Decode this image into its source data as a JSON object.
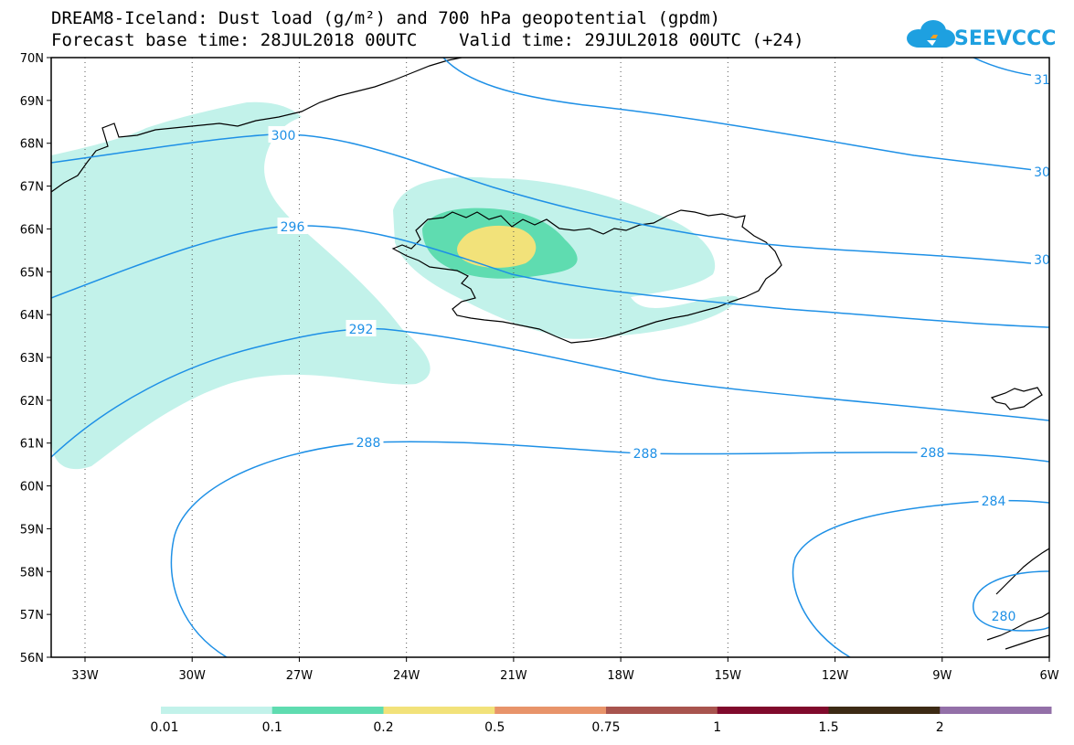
{
  "title_line1": "DREAM8-Iceland: Dust load (g/m²) and 700 hPa geopotential (gpdm)",
  "title_line2": "Forecast base time: 28JUL2018 00UTC    Valid time: 29JUL2018 00UTC (+24)",
  "logo_text": "SEEVCCC",
  "colors": {
    "contour": "#1e90e6",
    "coast": "#000000",
    "grid": "#555555"
  },
  "lat_labels": [
    "70N",
    "69N",
    "68N",
    "67N",
    "66N",
    "65N",
    "64N",
    "63N",
    "62N",
    "61N",
    "60N",
    "59N",
    "58N",
    "57N",
    "56N"
  ],
  "lon_labels": [
    "33W",
    "30W",
    "27W",
    "24W",
    "21W",
    "18W",
    "15W",
    "12W",
    "9W",
    "6W"
  ],
  "contour_labels": [
    {
      "id": "c300",
      "text": "300"
    },
    {
      "id": "c296",
      "text": "296"
    },
    {
      "id": "c292",
      "text": "292"
    },
    {
      "id": "c288a",
      "text": "288"
    },
    {
      "id": "c288b",
      "text": "288"
    },
    {
      "id": "c288c",
      "text": "288"
    },
    {
      "id": "c284",
      "text": "284"
    },
    {
      "id": "c280",
      "text": "280"
    },
    {
      "id": "c304a",
      "text": "30"
    },
    {
      "id": "c304b",
      "text": "30"
    },
    {
      "id": "c308",
      "text": "31"
    }
  ],
  "colorbar": {
    "colors": [
      "#c2f2ea",
      "#5fdcb0",
      "#f2e27a",
      "#e8946a",
      "#a8544e",
      "#800a2c",
      "#3c2a14",
      "#9370a8"
    ],
    "labels": [
      "0.01",
      "0.1",
      "0.2",
      "0.5",
      "0.75",
      "1",
      "1.5",
      "2"
    ]
  }
}
